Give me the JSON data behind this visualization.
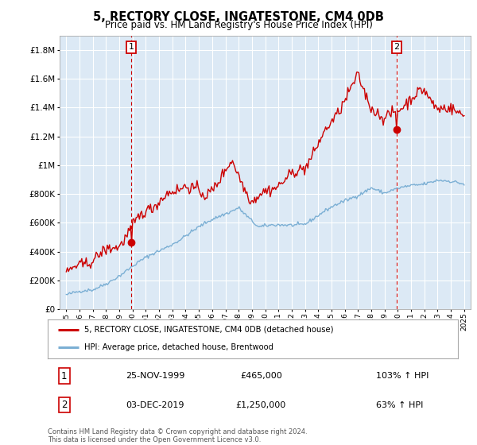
{
  "title": "5, RECTORY CLOSE, INGATESTONE, CM4 0DB",
  "subtitle": "Price paid vs. HM Land Registry's House Price Index (HPI)",
  "legend_label_red": "5, RECTORY CLOSE, INGATESTONE, CM4 0DB (detached house)",
  "legend_label_blue": "HPI: Average price, detached house, Brentwood",
  "annotation1_date": "25-NOV-1999",
  "annotation1_price": "£465,000",
  "annotation1_hpi": "103% ↑ HPI",
  "annotation2_date": "03-DEC-2019",
  "annotation2_price": "£1,250,000",
  "annotation2_hpi": "63% ↑ HPI",
  "footer": "Contains HM Land Registry data © Crown copyright and database right 2024.\nThis data is licensed under the Open Government Licence v3.0.",
  "fig_bg_color": "#ffffff",
  "plot_bg_color": "#dce9f5",
  "grid_color": "#ffffff",
  "red_color": "#cc0000",
  "blue_color": "#7bafd4",
  "sale1_year": 1999.9,
  "sale1_value": 465000,
  "sale2_year": 2019.92,
  "sale2_value": 1250000,
  "ylim_min": 0,
  "ylim_max": 1900000,
  "xlim_min": 1994.5,
  "xlim_max": 2025.5,
  "yticks": [
    0,
    200000,
    400000,
    600000,
    800000,
    1000000,
    1200000,
    1400000,
    1600000,
    1800000
  ],
  "xticks": [
    1995,
    1996,
    1997,
    1998,
    1999,
    2000,
    2001,
    2002,
    2003,
    2004,
    2005,
    2006,
    2007,
    2008,
    2009,
    2010,
    2011,
    2012,
    2013,
    2014,
    2015,
    2016,
    2017,
    2018,
    2019,
    2020,
    2021,
    2022,
    2023,
    2024,
    2025
  ]
}
